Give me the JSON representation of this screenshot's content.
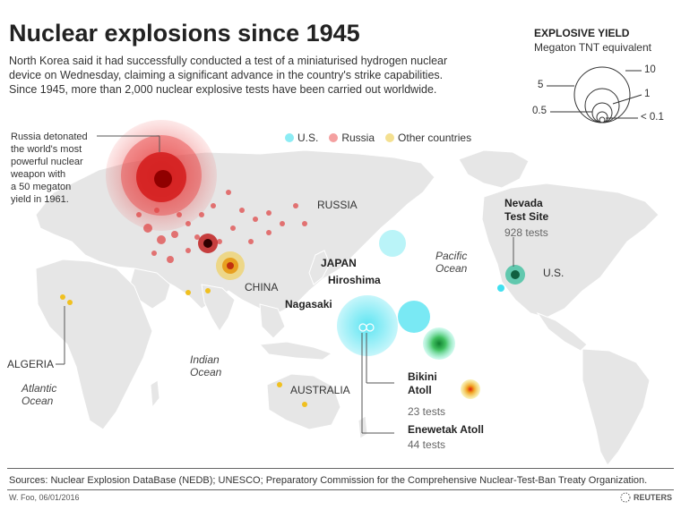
{
  "title": "Nuclear explosions since 1945",
  "subtitle_lines": [
    "North Korea said it had successfully conducted a test of a miniaturised hydrogen nuclear",
    "device on Wednesday, claiming a significant advance in the country's strike capabilities.",
    "Since 1945, more than 2,000 nuclear explosive tests have been carried out worldwide."
  ],
  "yield_legend": {
    "title": "EXPLOSIVE YIELD",
    "subtitle": "Megaton TNT equivalent",
    "labels": {
      "ten": "10",
      "five": "5",
      "one": "1",
      "half": "0.5",
      "lt": "< 0.1"
    }
  },
  "legend": [
    {
      "label": "U.S.",
      "color": "#5fe0f0"
    },
    {
      "label": "Russia",
      "color": "#f08080"
    },
    {
      "label": "Other countries",
      "color": "#f0d060"
    }
  ],
  "annotations": {
    "russia_note_lines": [
      "Russia detonated",
      "the world's most",
      "powerful nuclear",
      "weapon with",
      "a 50 megaton",
      "yield in 1961."
    ],
    "nevada_title_lines": [
      "Nevada",
      "Test Site"
    ],
    "nevada_count": "928 tests",
    "bikini_title_lines": [
      "Bikini",
      "Atoll"
    ],
    "bikini_count": "23 tests",
    "enewetak_title": "Enewetak Atoll",
    "enewetak_count": "44 tests"
  },
  "places": {
    "russia": "RUSSIA",
    "china": "CHINA",
    "japan": "JAPAN",
    "hiroshima": "Hiroshima",
    "nagasaki": "Nagasaki",
    "us": "U.S.",
    "australia": "AUSTRALIA",
    "algeria": "ALGERIA",
    "pacific": [
      "Pacific",
      "Ocean"
    ],
    "indian": [
      "Indian",
      "Ocean"
    ],
    "atlantic": [
      "Atlantic",
      "Ocean"
    ]
  },
  "colors": {
    "us": "#3fe0f0",
    "russia": "#e02020",
    "other": "#f0c020",
    "land": "#e6e6e6",
    "border": "#ffffff"
  },
  "footer": {
    "sources": "Sources: Nuclear Explosion DataBase (NEDB); UNESCO; Preparatory Commission for the Comprehensive Nuclear-Test-Ban Treaty Organization.",
    "credit": "W. Foo, 06/01/2016",
    "brand": "REUTERS"
  }
}
